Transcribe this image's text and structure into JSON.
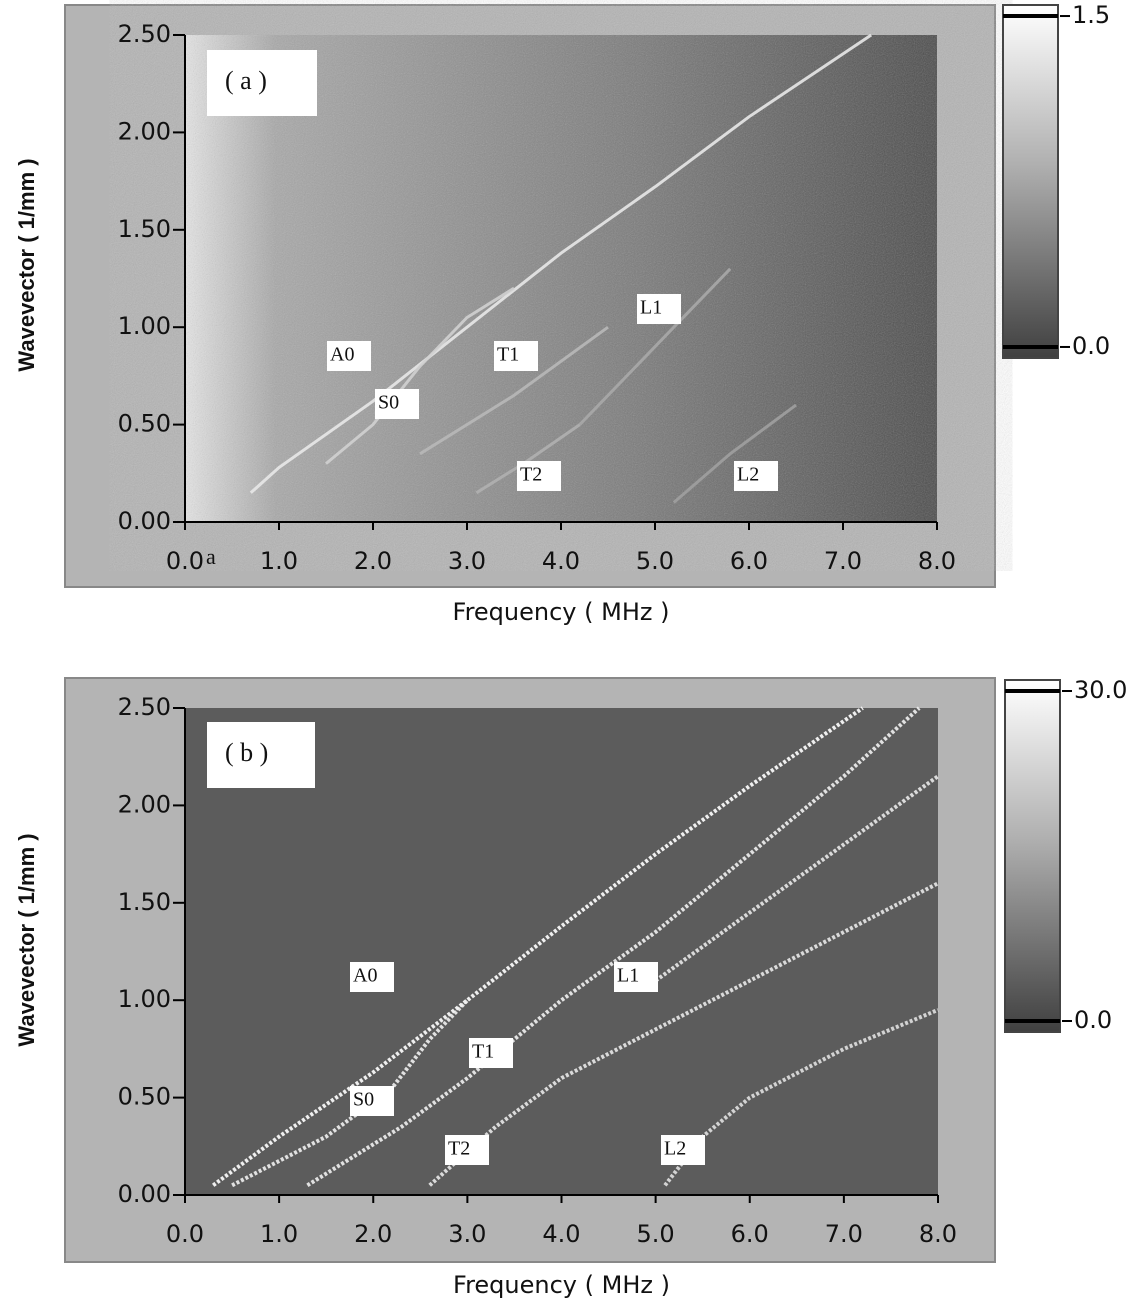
{
  "chart_data": [
    {
      "type": "heatmap",
      "panel_label": "( a )",
      "xlabel": "Frequency ( MHz )",
      "ylabel": "Wavevector ( 1/mm )",
      "annotations": [
        "a"
      ],
      "xlim": [
        0,
        8
      ],
      "ylim": [
        0,
        2.5
      ],
      "xticks": [
        {
          "value": 0,
          "label": "0.0"
        },
        {
          "value": 1,
          "label": "1.0"
        },
        {
          "value": 2,
          "label": "2.0"
        },
        {
          "value": 3,
          "label": "3.0"
        },
        {
          "value": 4,
          "label": "4.0"
        },
        {
          "value": 5,
          "label": "5.0"
        },
        {
          "value": 6,
          "label": "6.0"
        },
        {
          "value": 7,
          "label": "7.0"
        },
        {
          "value": 8,
          "label": "8.0"
        }
      ],
      "yticks": [
        {
          "value": 0,
          "label": "0.00"
        },
        {
          "value": 0.5,
          "label": "0.50"
        },
        {
          "value": 1,
          "label": "1.00"
        },
        {
          "value": 1.5,
          "label": "1.50"
        },
        {
          "value": 2,
          "label": "2.00"
        },
        {
          "value": 2.5,
          "label": "2.50"
        }
      ],
      "colorbar": {
        "lim": [
          -0.05,
          1.55
        ],
        "ticks": [
          {
            "value": 0,
            "label": "0.0"
          },
          1.5
        ]
      },
      "series": [
        {
          "name": "A0",
          "color": "#e8e8e8",
          "x": [
            0.7,
            1,
            2,
            3,
            4,
            5,
            6,
            7.3
          ],
          "values": [
            0.15,
            0.28,
            0.62,
            1.0,
            1.38,
            1.72,
            2.08,
            2.5
          ]
        },
        {
          "name": "S0",
          "color": "#d0d0d0",
          "x": [
            1.5,
            2,
            2.5,
            3,
            3.5
          ],
          "values": [
            0.3,
            0.5,
            0.8,
            1.05,
            1.2
          ]
        },
        {
          "name": "T1",
          "color": "#b8b8b8",
          "x": [
            2.5,
            3.5,
            4.5
          ],
          "values": [
            0.35,
            0.65,
            1.0
          ]
        },
        {
          "name": "T2",
          "color": "#b0b0b0",
          "x": [
            3.1,
            3.6,
            4.2
          ],
          "values": [
            0.15,
            0.3,
            0.5
          ]
        },
        {
          "name": "L1",
          "color": "#a8a8a8",
          "x": [
            4.2,
            5,
            5.8
          ],
          "values": [
            0.5,
            0.9,
            1.3
          ]
        },
        {
          "name": "L2",
          "color": "#a0a0a0",
          "x": [
            5.2,
            5.8,
            6.5
          ],
          "values": [
            0.1,
            0.35,
            0.6
          ]
        }
      ]
    },
    {
      "type": "heatmap",
      "panel_label": "( b )",
      "xlabel": "Frequency ( MHz )",
      "ylabel": "Wavevector ( 1/mm )",
      "xlim": [
        0,
        8
      ],
      "ylim": [
        0,
        2.5
      ],
      "xticks": [
        {
          "value": 0,
          "label": "0.0"
        },
        {
          "value": 1,
          "label": "1.0"
        },
        {
          "value": 2,
          "label": "2.0"
        },
        {
          "value": 3,
          "label": "3.0"
        },
        {
          "value": 4,
          "label": "4.0"
        },
        {
          "value": 5,
          "label": "5.0"
        },
        {
          "value": 6,
          "label": "6.0"
        },
        {
          "value": 7,
          "label": "7.0"
        },
        {
          "value": 8,
          "label": "8.0"
        }
      ],
      "yticks": [
        {
          "value": 0,
          "label": "0.00"
        },
        {
          "value": 0.5,
          "label": "0.50"
        },
        {
          "value": 1,
          "label": "1.00"
        },
        {
          "value": 1.5,
          "label": "1.50"
        },
        {
          "value": 2,
          "label": "2.00"
        },
        {
          "value": 2.5,
          "label": "2.50"
        }
      ],
      "colorbar": {
        "lim": [
          -1,
          31
        ],
        "ticks": [
          {
            "value": 0,
            "label": "0.0"
          },
          {
            "value": 30,
            "label": "30.0"
          }
        ]
      },
      "series": [
        {
          "name": "A0",
          "color": "#ffffff",
          "x": [
            0.3,
            1,
            2,
            3,
            4,
            5,
            6,
            7.2
          ],
          "values": [
            0.05,
            0.3,
            0.63,
            1.0,
            1.38,
            1.75,
            2.1,
            2.5
          ]
        },
        {
          "name": "S0",
          "color": "#f0f0f0",
          "x": [
            0.5,
            1.5,
            2.2,
            2.6,
            3
          ],
          "values": [
            0.05,
            0.3,
            0.55,
            0.8,
            1.0
          ]
        },
        {
          "name": "T1",
          "color": "#f0f0f0",
          "x": [
            1.3,
            2.3,
            3,
            4,
            5,
            6,
            7,
            7.8
          ],
          "values": [
            0.05,
            0.35,
            0.6,
            1.0,
            1.35,
            1.75,
            2.15,
            2.5
          ]
        },
        {
          "name": "T2",
          "color": "#e8e8e8",
          "x": [
            2.6,
            3.3,
            4,
            5,
            6,
            7,
            8
          ],
          "values": [
            0.05,
            0.35,
            0.6,
            0.85,
            1.1,
            1.35,
            1.6
          ]
        },
        {
          "name": "L1",
          "color": "#e8e8e8",
          "x": [
            5,
            6,
            7,
            8
          ],
          "values": [
            1.1,
            1.45,
            1.8,
            2.15
          ]
        },
        {
          "name": "L2",
          "color": "#e0e0e0",
          "x": [
            5.1,
            5.5,
            6,
            7,
            8
          ],
          "values": [
            0.05,
            0.3,
            0.5,
            0.75,
            0.95
          ]
        }
      ]
    }
  ]
}
